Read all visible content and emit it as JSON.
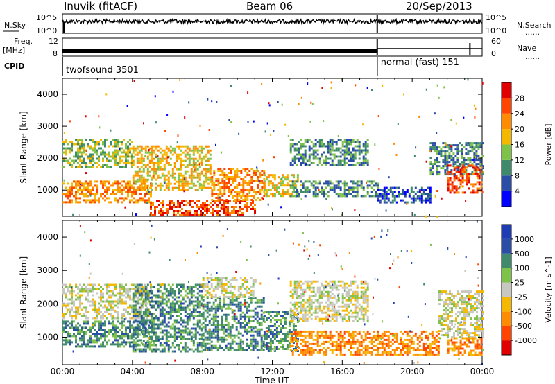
{
  "header": {
    "title": "Inuvik (fitACF)",
    "beam": "Beam 06",
    "date": "20/Sep/2013"
  },
  "panels": {
    "nsky_label": "N.Sky",
    "nsearch_label": "N.Search",
    "freq_label": "Freq.",
    "freq_unit": "[MHz]",
    "nave_label": "Nave",
    "cpid_label": "CPID",
    "dots": "......",
    "nsky_ticks": [
      "10^5",
      "10^0"
    ],
    "nsearch_ticks": [
      "10^5",
      "10^0"
    ],
    "freq_ticks": [
      "12",
      "8"
    ],
    "nave_ticks": [
      "60",
      "0"
    ]
  },
  "cpid": {
    "segments": [
      {
        "label": "twofsound 3501",
        "start_hour": 0,
        "end_hour": 18
      },
      {
        "label": "normal (fast) 151",
        "start_hour": 18,
        "end_hour": 24
      }
    ]
  },
  "colors": {
    "power": [
      "#0000ff",
      "#2a4ea6",
      "#3f8a6a",
      "#7fc24a",
      "#f5b800",
      "#ff8c00",
      "#ff4500",
      "#e10000"
    ],
    "velocity": [
      "#e10000",
      "#ff4500",
      "#ff8c00",
      "#f5b800",
      "#c8c8c0",
      "#7fc24a",
      "#3f8a6a",
      "#2a4ea6",
      "#1e3cb4"
    ]
  },
  "chart_data": [
    {
      "type": "heatmap",
      "name": "power",
      "x": {
        "label": "Time UT",
        "range_hours": [
          0,
          24
        ],
        "ticks": [
          "00:00",
          "04:00",
          "08:00",
          "12:00",
          "16:00",
          "20:00",
          "00:00"
        ]
      },
      "ylabel": "Slant Range [km]",
      "ylim": [
        180,
        4500
      ],
      "yticks": [
        1000,
        2000,
        3000,
        4000
      ],
      "colorbar": {
        "label": "Power [dB]",
        "ticks": [
          "4",
          "8",
          "12",
          "16",
          "20",
          "24",
          "28"
        ],
        "range": [
          0,
          32
        ]
      },
      "bands": [
        {
          "t0": 0.0,
          "t1": 5.0,
          "r0": 600,
          "r1": 1300,
          "v": 22
        },
        {
          "t0": 0.0,
          "t1": 4.0,
          "r0": 1700,
          "r1": 2600,
          "v": 14
        },
        {
          "t0": 4.0,
          "t1": 8.5,
          "r0": 1000,
          "r1": 2400,
          "v": 18
        },
        {
          "t0": 5.0,
          "t1": 11.0,
          "r0": 180,
          "r1": 700,
          "v": 26
        },
        {
          "t0": 8.5,
          "t1": 11.5,
          "r0": 700,
          "r1": 1700,
          "v": 24
        },
        {
          "t0": 11.5,
          "t1": 13.5,
          "r0": 800,
          "r1": 1500,
          "v": 20
        },
        {
          "t0": 13.0,
          "t1": 17.5,
          "r0": 1800,
          "r1": 2600,
          "v": 12
        },
        {
          "t0": 13.0,
          "t1": 18.0,
          "r0": 800,
          "r1": 1300,
          "v": 10
        },
        {
          "t0": 18.0,
          "t1": 21.0,
          "r0": 600,
          "r1": 1100,
          "v": 8
        },
        {
          "t0": 21.0,
          "t1": 24.0,
          "r0": 1500,
          "r1": 2500,
          "v": 12
        },
        {
          "t0": 22.0,
          "t1": 24.0,
          "r0": 900,
          "r1": 1800,
          "v": 26
        }
      ]
    },
    {
      "type": "heatmap",
      "name": "velocity",
      "x": {
        "label": "Time UT",
        "range_hours": [
          0,
          24
        ],
        "ticks": [
          "00:00",
          "04:00",
          "08:00",
          "12:00",
          "16:00",
          "20:00",
          "00:00"
        ]
      },
      "ylabel": "Slant Range [km]",
      "ylim": [
        180,
        4500
      ],
      "yticks": [
        1000,
        2000,
        3000,
        4000
      ],
      "colorbar": {
        "label": "Velocity [m s^-1]",
        "ticks": [
          "1000",
          "500",
          "100",
          "25",
          "-25",
          "-100",
          "-500",
          "-1000"
        ]
      },
      "bands": [
        {
          "t0": 0.0,
          "t1": 5.0,
          "r0": 700,
          "r1": 1500,
          "c": 6
        },
        {
          "t0": 0.0,
          "t1": 5.0,
          "r0": 1600,
          "r1": 2600,
          "c": 4
        },
        {
          "t0": 4.0,
          "t1": 8.0,
          "r0": 600,
          "r1": 2600,
          "c": 6
        },
        {
          "t0": 8.0,
          "t1": 11.5,
          "r0": 600,
          "r1": 2200,
          "c": 6
        },
        {
          "t0": 8.0,
          "t1": 11.0,
          "r0": 2200,
          "r1": 2800,
          "c": 4
        },
        {
          "t0": 11.5,
          "t1": 13.5,
          "r0": 600,
          "r1": 1800,
          "c": 6
        },
        {
          "t0": 13.0,
          "t1": 17.5,
          "r0": 1500,
          "r1": 2700,
          "c": 4
        },
        {
          "t0": 13.0,
          "t1": 18.0,
          "r0": 500,
          "r1": 1200,
          "c": 2
        },
        {
          "t0": 18.0,
          "t1": 21.5,
          "r0": 500,
          "r1": 1200,
          "c": 2
        },
        {
          "t0": 21.5,
          "t1": 24.0,
          "r0": 1000,
          "r1": 2400,
          "c": 4
        },
        {
          "t0": 22.0,
          "t1": 24.0,
          "r0": 500,
          "r1": 1000,
          "c": 2
        }
      ]
    }
  ]
}
